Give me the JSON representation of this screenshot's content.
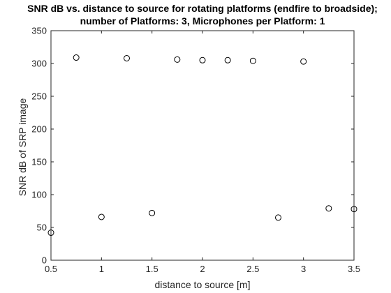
{
  "chart_data": {
    "type": "scatter",
    "title": [
      "SNR dB vs. distance to source for rotating platforms (endfire to broadside);",
      "number of Platforms: 3, Microphones per Platform: 1"
    ],
    "xlabel": "distance to source [m]",
    "ylabel": "SNR dB of SRP image",
    "xlim": [
      0.5,
      3.5
    ],
    "ylim": [
      0,
      350
    ],
    "xticks": [
      "0.5",
      "1",
      "1.5",
      "2",
      "2.5",
      "3",
      "3.5"
    ],
    "yticks": [
      "0",
      "50",
      "100",
      "150",
      "200",
      "250",
      "300",
      "350"
    ],
    "grid": false,
    "marker": "open-circle",
    "marker_color": "#000000",
    "axis_color": "#262626",
    "x": [
      0.5,
      0.75,
      1.0,
      1.25,
      1.5,
      1.75,
      2.0,
      2.25,
      2.5,
      2.75,
      3.0,
      3.25,
      3.5
    ],
    "y": [
      42,
      309,
      66,
      308,
      72,
      306,
      305,
      305,
      304,
      65,
      303,
      79,
      78
    ]
  }
}
